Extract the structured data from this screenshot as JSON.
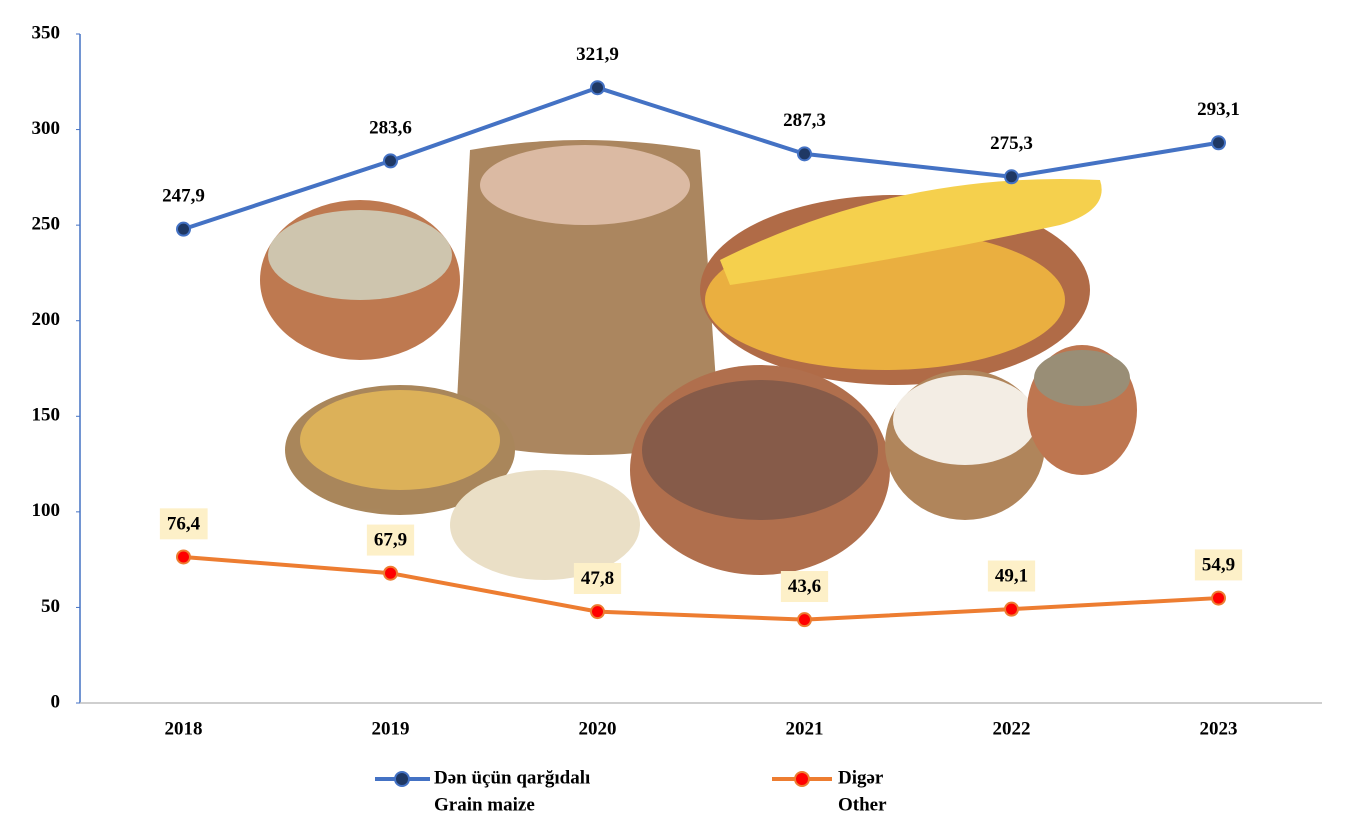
{
  "chart_data": {
    "type": "line",
    "categories": [
      "2018",
      "2019",
      "2020",
      "2021",
      "2022",
      "2023"
    ],
    "series": [
      {
        "name": "Dən üçün qarğıdalı",
        "name_en": "Grain maize",
        "color": "#4472c4",
        "marker_color": "#1f3864",
        "values": [
          247.9,
          283.6,
          321.9,
          287.3,
          275.3,
          293.1
        ],
        "value_labels": [
          "247,9",
          "283,6",
          "321,9",
          "287,3",
          "275,3",
          "293,1"
        ]
      },
      {
        "name": "Digər",
        "name_en": "Other",
        "color": "#ed7d31",
        "marker_color": "#ff0000",
        "values": [
          76.4,
          67.9,
          47.8,
          43.6,
          49.1,
          54.9
        ],
        "value_labels": [
          "76,4",
          "67,9",
          "47,8",
          "43,6",
          "49,1",
          "54,9"
        ]
      }
    ],
    "ylim": [
      0,
      350
    ],
    "yticks": [
      0,
      50,
      100,
      150,
      200,
      250,
      300,
      350
    ],
    "grid": false
  }
}
